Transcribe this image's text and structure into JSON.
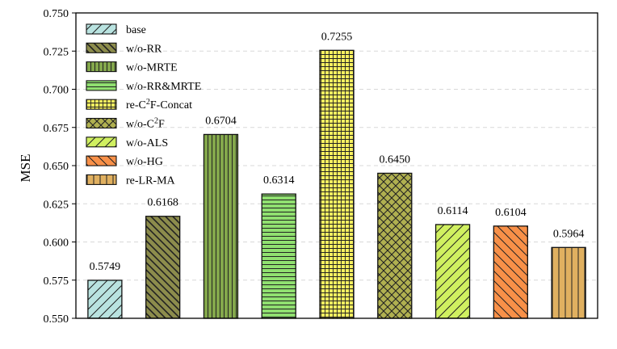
{
  "chart_data": {
    "type": "bar",
    "title": "",
    "xlabel": "",
    "ylabel": "MSE",
    "ylim": [
      0.55,
      0.75
    ],
    "yticks": [
      "0.550",
      "0.575",
      "0.600",
      "0.625",
      "0.650",
      "0.675",
      "0.700",
      "0.725",
      "0.750"
    ],
    "grid": "horizontal dashed",
    "legend_position": "top-left",
    "categories": [
      "base",
      "w/o-RR",
      "w/o-MRTE",
      "w/o-RR&MRTE",
      "re-C²F-Concat",
      "w/o-C²F",
      "w/o-ALS",
      "w/o-HG",
      "re-LR-MA"
    ],
    "legend": [
      {
        "base": "base",
        "sup": ""
      },
      {
        "base": "w/o-RR",
        "sup": ""
      },
      {
        "base": "w/o-MRTE",
        "sup": ""
      },
      {
        "base": "w/o-RR&MRTE",
        "sup": ""
      },
      {
        "base": "re-C",
        "sup": "2",
        "rest": "F-Concat"
      },
      {
        "base": "w/o-C",
        "sup": "2",
        "rest": "F"
      },
      {
        "base": "w/o-ALS",
        "sup": ""
      },
      {
        "base": "w/o-HG",
        "sup": ""
      },
      {
        "base": "re-LR-MA",
        "sup": ""
      }
    ],
    "values": [
      0.5749,
      0.6168,
      0.6704,
      0.6314,
      0.7255,
      0.645,
      0.6114,
      0.6104,
      0.5964
    ],
    "value_labels": [
      "0.5749",
      "0.6168",
      "0.6704",
      "0.6314",
      "0.7255",
      "0.6450",
      "0.6114",
      "0.6104",
      "0.5964"
    ],
    "colors": [
      "#b9e3e0",
      "#8c8c4c",
      "#84a84c",
      "#90e070",
      "#f8f060",
      "#b0b050",
      "#d0f060",
      "#f89048",
      "#e0b060"
    ],
    "patterns": [
      "diag-right",
      "diag-left-dense",
      "vertical",
      "horizontal",
      "grid",
      "cross",
      "diag-right",
      "diag-left",
      "vertical-wide"
    ]
  }
}
